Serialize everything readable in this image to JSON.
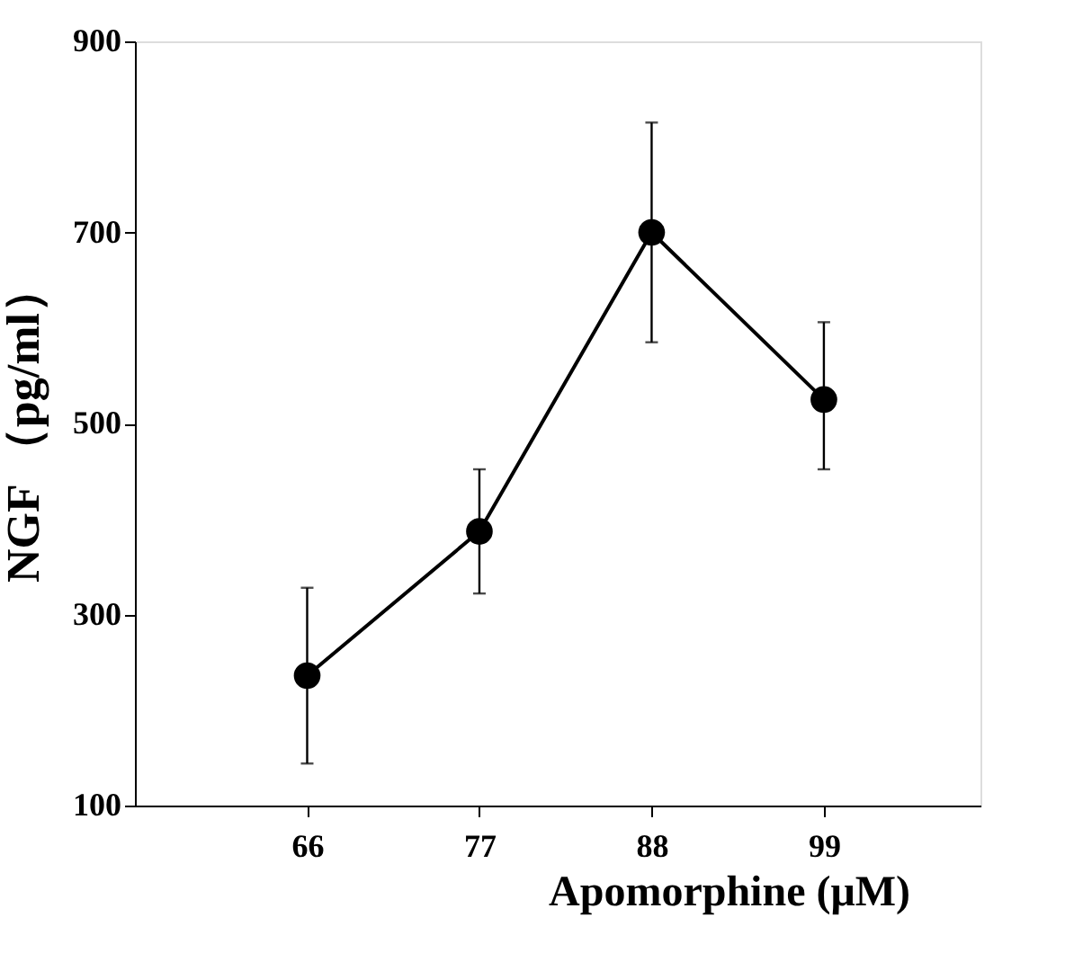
{
  "chart_data": {
    "type": "line",
    "xlabel": "Apomorphine  (μM)",
    "ylabel": "NGF （pg/ml）",
    "x": [
      66,
      77,
      88,
      99
    ],
    "series": [
      {
        "color": "#000000",
        "values": [
          236,
          387,
          700,
          525
        ],
        "errors": [
          92,
          65,
          115,
          [
            452,
            606
          ]
        ]
      }
    ],
    "xlim": [
      55,
      109
    ],
    "xticks": [
      66,
      77,
      88,
      99
    ],
    "ylim": [
      100,
      900
    ],
    "yticks": [
      100,
      300,
      500,
      700,
      900
    ],
    "marker": "circle",
    "line_style": "solid"
  }
}
